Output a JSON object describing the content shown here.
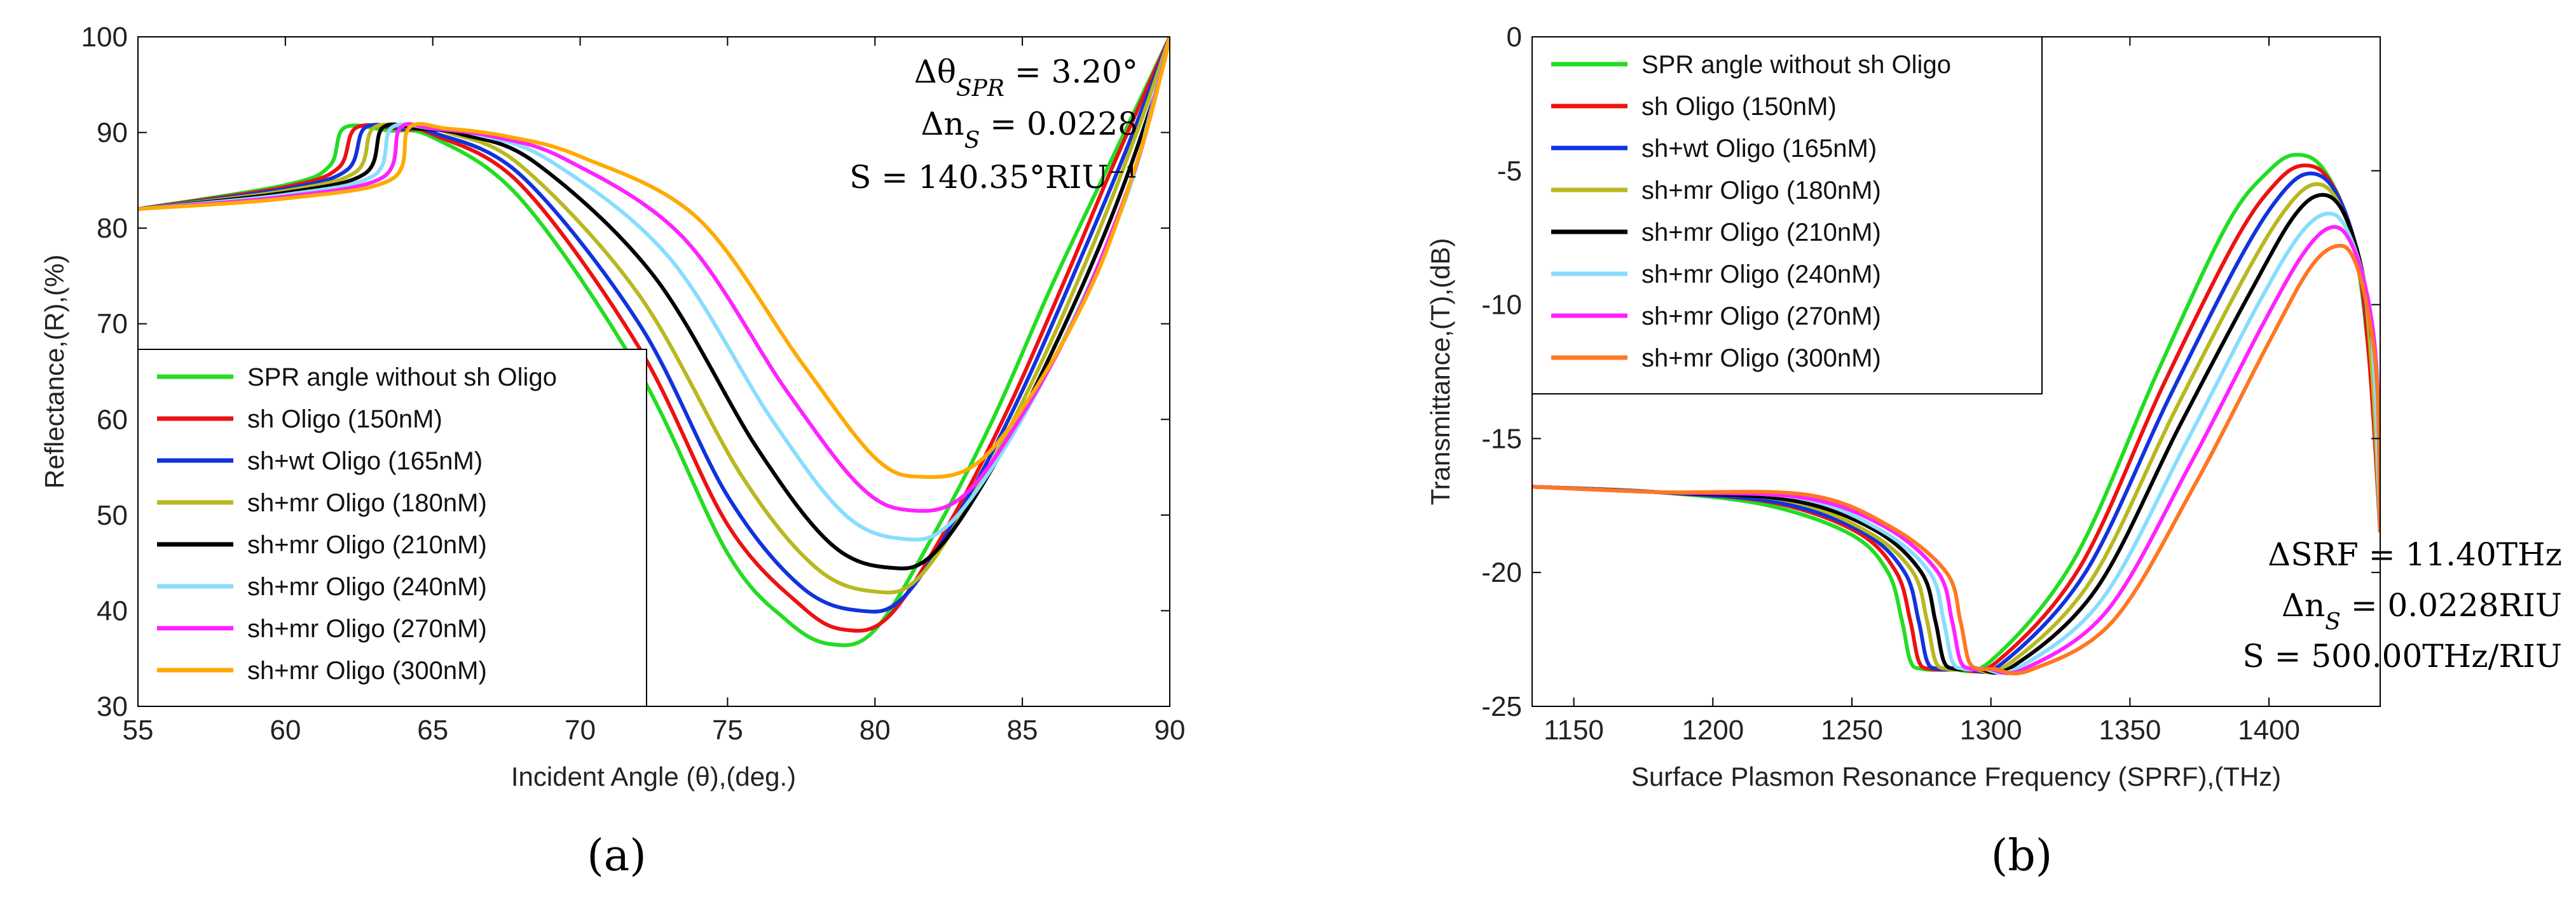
{
  "chart_data": [
    {
      "type": "line",
      "panel_label": "(a)",
      "xlabel": "Incident Angle (θ),(deg.)",
      "ylabel": "Reflectance,(R),(%)",
      "xlim": [
        55,
        90
      ],
      "ylim": [
        30,
        100
      ],
      "xticks": [
        "55",
        "60",
        "65",
        "70",
        "75",
        "80",
        "85",
        "90"
      ],
      "yticks": [
        "30",
        "40",
        "50",
        "60",
        "70",
        "80",
        "90",
        "100"
      ],
      "grid": false,
      "legend_position": "lower-left",
      "annotations": [
        "Δθ_SPR = 3.20°",
        "Δn_S = 0.0228",
        "S = 140.35°RIU⁻¹"
      ],
      "series": [
        {
          "name": "SPR angle without sh Oligo",
          "color": "#22dd22",
          "x": [
            55,
            60,
            61.5,
            62,
            63.5,
            65,
            68,
            72,
            75,
            77,
            78.5,
            80,
            82,
            84,
            86,
            88,
            90
          ],
          "y": [
            82,
            84.5,
            86.5,
            90.5,
            90.2,
            89.5,
            83,
            65,
            46,
            39,
            36.5,
            38,
            48,
            60,
            74,
            87,
            100
          ]
        },
        {
          "name": "sh Oligo (150nM)",
          "color": "#ee1111",
          "x": [
            55,
            60,
            61.8,
            62.4,
            64,
            65,
            68,
            72,
            75,
            77.5,
            79,
            80.5,
            82.5,
            84.5,
            86.5,
            88,
            90
          ],
          "y": [
            82,
            84.3,
            86.3,
            90.5,
            90.3,
            89.8,
            84.5,
            67.5,
            49,
            40.5,
            38,
            39.5,
            49,
            61,
            75,
            86,
            100
          ]
        },
        {
          "name": "sh+wt Oligo (165nM)",
          "color": "#1133dd",
          "x": [
            55,
            60,
            62.1,
            62.7,
            64,
            65,
            68,
            72,
            75,
            77.5,
            79.5,
            81,
            83,
            85,
            87,
            88.5,
            90
          ],
          "y": [
            82,
            84.1,
            86.1,
            90.5,
            90.4,
            90,
            85.5,
            70,
            52,
            42.5,
            40,
            41.5,
            51,
            63,
            77,
            88,
            100
          ]
        },
        {
          "name": "sh+mr Oligo (180nM)",
          "color": "#b8b820",
          "x": [
            55,
            60,
            62.4,
            63,
            64.5,
            65.5,
            68,
            72,
            75.5,
            78,
            80,
            81.5,
            83.5,
            85.5,
            87.5,
            89,
            90
          ],
          "y": [
            82,
            83.9,
            85.9,
            90.5,
            90.4,
            90,
            86.5,
            73,
            54,
            44.5,
            42,
            43.5,
            53,
            65,
            79,
            91,
            100
          ]
        },
        {
          "name": "sh+mr Oligo (210nM)",
          "color": "#000000",
          "x": [
            55,
            60,
            62.7,
            63.3,
            64.5,
            66,
            68.5,
            72.5,
            76,
            78.5,
            80.5,
            82,
            84,
            86,
            88,
            89.5,
            90
          ],
          "y": [
            82,
            83.7,
            85.7,
            90.5,
            90.4,
            89.8,
            86.8,
            75,
            57,
            47,
            44.5,
            46,
            55,
            67,
            81,
            94,
            100
          ]
        },
        {
          "name": "sh+mr Oligo (240nM)",
          "color": "#88ddff",
          "x": [
            55,
            60,
            63,
            63.6,
            65,
            66.5,
            69,
            73,
            76.5,
            79,
            81,
            82.5,
            84.5,
            86.5,
            88.5,
            89.5,
            90
          ],
          "y": [
            82,
            83.5,
            85.5,
            90.5,
            90.4,
            89.8,
            87,
            77,
            60,
            50,
            47.5,
            49,
            57.5,
            69,
            83,
            94,
            100
          ]
        },
        {
          "name": "sh+mr Oligo (270nM)",
          "color": "#ff22ff",
          "x": [
            55,
            60,
            63.3,
            63.9,
            65,
            67,
            69.5,
            73.5,
            77,
            79.5,
            81.2,
            83,
            85,
            87,
            88.8,
            89.6,
            90
          ],
          "y": [
            82,
            83.3,
            85.3,
            90.5,
            90.4,
            89.6,
            87.2,
            79,
            63,
            53,
            50.5,
            52,
            60.5,
            72,
            86,
            95,
            100
          ]
        },
        {
          "name": "sh+mr Oligo (300nM)",
          "color": "#ffaa00",
          "x": [
            55,
            60,
            63.6,
            64.2,
            65.5,
            67.5,
            70,
            74,
            77.5,
            80,
            81.6,
            83.5,
            85.5,
            87.5,
            89,
            89.7,
            90
          ],
          "y": [
            82,
            83.1,
            85.1,
            90.5,
            90.4,
            89.6,
            87.5,
            81,
            66,
            56,
            54,
            55.5,
            63.5,
            75,
            88,
            96,
            100
          ]
        }
      ]
    },
    {
      "type": "line",
      "panel_label": "(b)",
      "xlabel": "Surface Plasmon Resonance Frequency (SPRF),(THz)",
      "ylabel": "Transmittance,(T),(dB)",
      "xlim": [
        1135,
        1440
      ],
      "ylim": [
        -25,
        0
      ],
      "xticks": [
        "1150",
        "1200",
        "1250",
        "1300",
        "1350",
        "1400"
      ],
      "yticks": [
        "-25",
        "-20",
        "-15",
        "-10",
        "-5",
        "0"
      ],
      "grid": false,
      "legend_position": "upper-left",
      "annotations": [
        "ΔSRF = 11.40THz",
        "Δn_S = 0.0228RIU",
        "S = 500.00THz/RIU"
      ],
      "series": [
        {
          "name": "SPR angle without sh Oligo",
          "color": "#22dd22",
          "x": [
            1135,
            1180,
            1220,
            1250,
            1263,
            1268,
            1271,
            1275,
            1285,
            1300,
            1330,
            1360,
            1385,
            1400,
            1410,
            1420,
            1430,
            1436,
            1440
          ],
          "y": [
            -16.8,
            -17,
            -17.5,
            -18.6,
            -20,
            -21.8,
            -23.3,
            -23.6,
            -23.6,
            -23.3,
            -19.5,
            -12.5,
            -7,
            -5,
            -4.4,
            -5,
            -7.5,
            -12,
            -18.5
          ]
        },
        {
          "name": "sh Oligo (150nM)",
          "color": "#ee1111",
          "x": [
            1135,
            1180,
            1222,
            1252,
            1266,
            1271,
            1274,
            1278,
            1288,
            1302,
            1332,
            1362,
            1388,
            1403,
            1413,
            1422,
            1431,
            1436,
            1440
          ],
          "y": [
            -16.8,
            -17,
            -17.4,
            -18.5,
            -20,
            -21.8,
            -23.3,
            -23.6,
            -23.6,
            -23.35,
            -19.8,
            -13,
            -7.6,
            -5.4,
            -4.8,
            -5.4,
            -7.8,
            -12,
            -18.5
          ]
        },
        {
          "name": "sh+wt Oligo (165nM)",
          "color": "#1133dd",
          "x": [
            1135,
            1180,
            1224,
            1254,
            1269,
            1274,
            1277,
            1281,
            1291,
            1304,
            1334,
            1364,
            1390,
            1405,
            1415,
            1424,
            1432,
            1437,
            1440
          ],
          "y": [
            -16.8,
            -17,
            -17.4,
            -18.5,
            -20,
            -21.8,
            -23.3,
            -23.6,
            -23.6,
            -23.4,
            -20,
            -13.5,
            -8.2,
            -5.8,
            -5.1,
            -5.8,
            -8.2,
            -12.2,
            -18.5
          ]
        },
        {
          "name": "sh+mr Oligo (180nM)",
          "color": "#b8b820",
          "x": [
            1135,
            1180,
            1226,
            1256,
            1272,
            1277,
            1280,
            1284,
            1293,
            1306,
            1336,
            1366,
            1392,
            1407,
            1417,
            1425,
            1433,
            1437,
            1440
          ],
          "y": [
            -16.8,
            -17,
            -17.3,
            -18.5,
            -20,
            -21.8,
            -23.3,
            -23.6,
            -23.6,
            -23.45,
            -20.3,
            -14,
            -8.8,
            -6.3,
            -5.5,
            -6.2,
            -8.6,
            -12.4,
            -18.5
          ]
        },
        {
          "name": "sh+mr Oligo (210nM)",
          "color": "#000000",
          "x": [
            1135,
            1180,
            1228,
            1258,
            1275,
            1280,
            1283,
            1287,
            1295,
            1308,
            1338,
            1368,
            1394,
            1409,
            1419,
            1427,
            1434,
            1438,
            1440
          ],
          "y": [
            -16.8,
            -17,
            -17.3,
            -18.4,
            -20,
            -21.8,
            -23.3,
            -23.6,
            -23.6,
            -23.5,
            -20.6,
            -14.5,
            -9.4,
            -6.7,
            -5.9,
            -6.6,
            -9,
            -12.6,
            -18.5
          ]
        },
        {
          "name": "sh+mr Oligo (240nM)",
          "color": "#88ddff",
          "x": [
            1135,
            1180,
            1230,
            1260,
            1278,
            1283,
            1286,
            1290,
            1297,
            1310,
            1340,
            1370,
            1396,
            1411,
            1421,
            1428,
            1435,
            1438,
            1440
          ],
          "y": [
            -16.8,
            -17,
            -17.2,
            -18.4,
            -20,
            -21.8,
            -23.3,
            -23.6,
            -23.6,
            -23.55,
            -21,
            -15.2,
            -10,
            -7.4,
            -6.6,
            -7.2,
            -9.5,
            -12.8,
            -18.5
          ]
        },
        {
          "name": "sh+mr Oligo (270nM)",
          "color": "#ff22ff",
          "x": [
            1135,
            1180,
            1232,
            1262,
            1281,
            1286,
            1289,
            1293,
            1299,
            1312,
            1342,
            1372,
            1398,
            1413,
            1423,
            1430,
            1436,
            1439,
            1440
          ],
          "y": [
            -16.8,
            -17,
            -17.2,
            -18.3,
            -20,
            -21.8,
            -23.3,
            -23.6,
            -23.6,
            -23.6,
            -21.4,
            -15.9,
            -10.7,
            -8,
            -7.1,
            -7.8,
            -10,
            -13,
            -18.5
          ]
        },
        {
          "name": "sh+mr Oligo (300nM)",
          "color": "#ff7722",
          "x": [
            1135,
            1180,
            1234,
            1264,
            1284,
            1289,
            1292,
            1296,
            1301,
            1314,
            1344,
            1374,
            1400,
            1415,
            1425,
            1431,
            1436,
            1439,
            1440
          ],
          "y": [
            -16.8,
            -17,
            -17.1,
            -18.3,
            -20,
            -21.8,
            -23.3,
            -23.6,
            -23.6,
            -23.65,
            -21.8,
            -16.6,
            -11.4,
            -8.6,
            -7.8,
            -8.4,
            -10.5,
            -13.2,
            -18.5
          ]
        }
      ]
    }
  ]
}
